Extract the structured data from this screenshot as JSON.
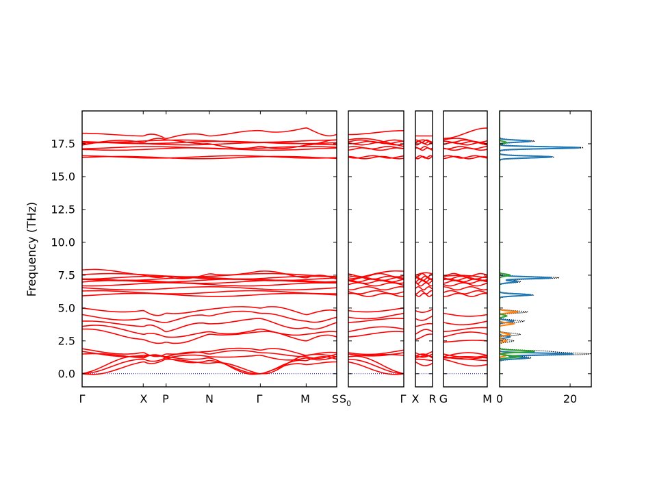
{
  "chart_data": {
    "type": "line",
    "ylabel": "Frequency (THz)",
    "ylim": [
      -1.0,
      20.0
    ],
    "yticks": [
      "0.0",
      "2.5",
      "5.0",
      "7.5",
      "10.0",
      "12.5",
      "15.0",
      "17.5"
    ],
    "ytick_values": [
      0.0,
      2.5,
      5.0,
      7.5,
      10.0,
      12.5,
      15.0,
      17.5
    ],
    "line_color": "#ff0000",
    "zero_line_color": "#0000cc",
    "band_segments": [
      {
        "path": [
          "Γ",
          "X",
          "P",
          "N",
          "Γ",
          "M",
          "S"
        ],
        "positions": [
          0,
          0.24,
          0.33,
          0.5,
          0.7,
          0.88,
          1.0
        ]
      },
      {
        "path": [
          "S0",
          "Γ"
        ],
        "positions": [
          0,
          1
        ]
      },
      {
        "path": [
          "X",
          "R"
        ],
        "positions": [
          0,
          1
        ]
      },
      {
        "path": [
          "G",
          "M"
        ],
        "positions": [
          0,
          1
        ]
      }
    ],
    "flat_bands": [
      16.45,
      16.5,
      17.1,
      17.2,
      17.5,
      17.6,
      17.7,
      6.0,
      6.2,
      6.5,
      6.8,
      7.0,
      7.1,
      7.2,
      7.3,
      7.5
    ],
    "curved_bands": [
      [
        18.3,
        18.1,
        17.9,
        18.1,
        18.5,
        18.7,
        18.2
      ],
      [
        17.4,
        17.6,
        17.8,
        17.5,
        17.3,
        17.4,
        17.8
      ],
      [
        7.9,
        7.5,
        7.4,
        7.6,
        7.8,
        7.3,
        7.2
      ],
      [
        5.0,
        4.8,
        4.6,
        4.9,
        5.0,
        4.5,
        4.8
      ],
      [
        4.5,
        4.2,
        3.9,
        4.4,
        4.6,
        4.0,
        4.3
      ],
      [
        4.0,
        3.6,
        3.2,
        3.8,
        4.2,
        3.5,
        3.9
      ],
      [
        3.6,
        3.0,
        2.8,
        3.2,
        3.4,
        3.0,
        3.2
      ],
      [
        3.4,
        2.6,
        2.4,
        3.0,
        3.2,
        2.5,
        2.8
      ],
      [
        1.9,
        1.6,
        1.5,
        1.7,
        1.8,
        1.4,
        1.6
      ],
      [
        1.7,
        1.4,
        1.3,
        1.5,
        1.6,
        1.3,
        1.5
      ],
      [
        1.5,
        1.2,
        1.2,
        1.3,
        1.4,
        1.2,
        1.3
      ],
      [
        0.0,
        1.3,
        1.3,
        1.2,
        0.0,
        1.4,
        1.3
      ],
      [
        0.0,
        1.1,
        1.2,
        1.0,
        0.0,
        1.0,
        1.1
      ],
      [
        0.0,
        0.9,
        1.1,
        0.8,
        0.0,
        0.7,
        0.9
      ]
    ],
    "dos": {
      "xticks": [
        "0",
        "20"
      ],
      "xtick_values": [
        0,
        20
      ],
      "xlim": [
        0,
        26
      ],
      "total_color": "#000000",
      "series": [
        {
          "color": "#1f77b4",
          "peaks": [
            [
              17.2,
              23
            ],
            [
              16.5,
              15
            ],
            [
              17.7,
              9
            ],
            [
              7.3,
              15
            ],
            [
              6.0,
              9
            ],
            [
              7.0,
              5
            ],
            [
              1.5,
              21
            ],
            [
              1.2,
              8
            ],
            [
              4.0,
              4
            ],
            [
              2.8,
              3
            ]
          ]
        },
        {
          "color": "#ff7f0e",
          "peaks": [
            [
              4.7,
              5
            ],
            [
              3.8,
              4
            ],
            [
              3.0,
              3
            ],
            [
              2.5,
              2
            ],
            [
              1.4,
              2
            ]
          ]
        },
        {
          "color": "#2ca02c",
          "peaks": [
            [
              1.7,
              10
            ],
            [
              1.3,
              6
            ],
            [
              7.5,
              3
            ],
            [
              17.6,
              2
            ],
            [
              4.4,
              2
            ]
          ]
        }
      ],
      "total_peaks": [
        [
          17.2,
          24
        ],
        [
          16.5,
          15.5
        ],
        [
          17.7,
          10
        ],
        [
          7.3,
          17
        ],
        [
          6.0,
          9.5
        ],
        [
          7.0,
          6
        ],
        [
          1.5,
          25
        ],
        [
          1.7,
          13
        ],
        [
          1.2,
          9
        ],
        [
          4.7,
          8
        ],
        [
          4.0,
          7
        ],
        [
          3.0,
          6
        ],
        [
          2.5,
          4
        ]
      ]
    }
  },
  "xtick_labels": {
    "panel1": [
      "Γ",
      "X",
      "P",
      "N",
      "Γ",
      "M",
      "S"
    ],
    "panel2_start": "S",
    "panel2_start_sub": "0",
    "panel2_end": "Γ",
    "panel3": [
      "X",
      "R"
    ],
    "panel4": [
      "G",
      "M"
    ]
  }
}
